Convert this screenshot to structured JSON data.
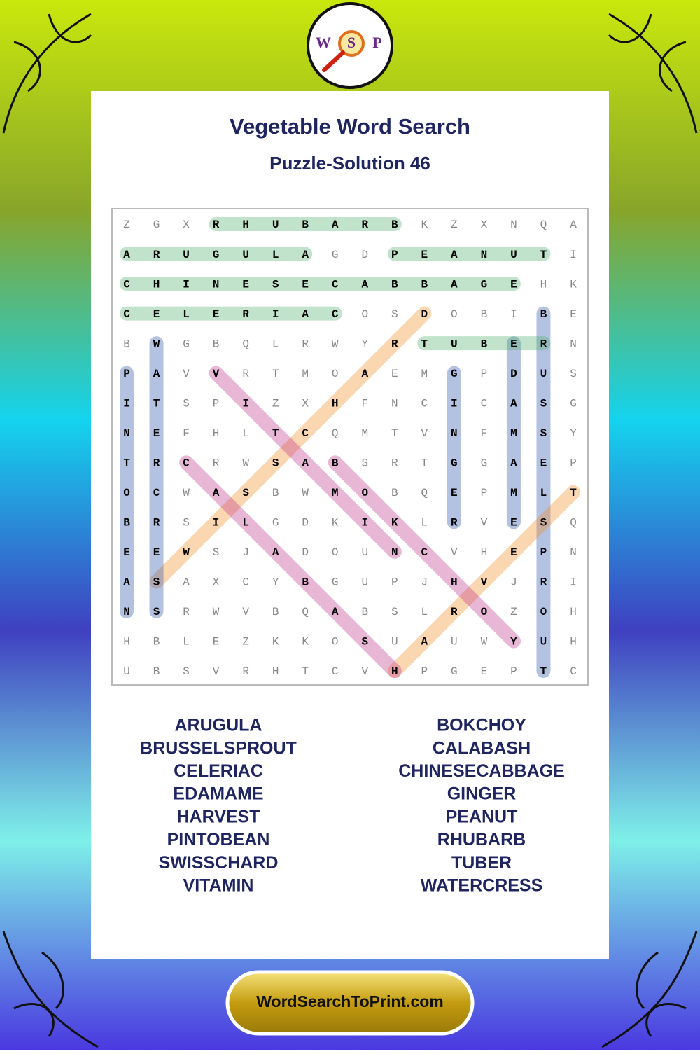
{
  "logo": [
    "W",
    "S",
    "P"
  ],
  "title": "Vegetable Word Search",
  "subtitle": "Puzzle-Solution 46",
  "grid": [
    [
      "Z",
      "G",
      "X",
      "R",
      "H",
      "U",
      "B",
      "A",
      "R",
      "B",
      "K",
      "Z",
      "X",
      "N",
      "Q",
      "A"
    ],
    [
      "A",
      "R",
      "U",
      "G",
      "U",
      "L",
      "A",
      "G",
      "D",
      "P",
      "E",
      "A",
      "N",
      "U",
      "T",
      "I"
    ],
    [
      "C",
      "H",
      "I",
      "N",
      "E",
      "S",
      "E",
      "C",
      "A",
      "B",
      "B",
      "A",
      "G",
      "E",
      "H",
      "K"
    ],
    [
      "C",
      "E",
      "L",
      "E",
      "R",
      "I",
      "A",
      "C",
      "O",
      "S",
      "D",
      "O",
      "B",
      "I",
      "B",
      "E"
    ],
    [
      "B",
      "W",
      "G",
      "B",
      "Q",
      "L",
      "R",
      "W",
      "Y",
      "R",
      "T",
      "U",
      "B",
      "E",
      "R",
      "N"
    ],
    [
      "P",
      "A",
      "V",
      "V",
      "R",
      "T",
      "M",
      "O",
      "A",
      "E",
      "M",
      "G",
      "P",
      "D",
      "U",
      "S"
    ],
    [
      "I",
      "T",
      "S",
      "P",
      "I",
      "Z",
      "X",
      "H",
      "F",
      "N",
      "C",
      "I",
      "C",
      "A",
      "S",
      "G"
    ],
    [
      "N",
      "E",
      "F",
      "H",
      "L",
      "T",
      "C",
      "Q",
      "M",
      "T",
      "V",
      "N",
      "F",
      "M",
      "S",
      "Y"
    ],
    [
      "T",
      "R",
      "C",
      "R",
      "W",
      "S",
      "A",
      "B",
      "S",
      "R",
      "T",
      "G",
      "G",
      "A",
      "E",
      "P"
    ],
    [
      "O",
      "C",
      "W",
      "A",
      "S",
      "B",
      "W",
      "M",
      "O",
      "B",
      "Q",
      "E",
      "P",
      "M",
      "L",
      "T"
    ],
    [
      "B",
      "R",
      "S",
      "I",
      "L",
      "G",
      "D",
      "K",
      "I",
      "K",
      "L",
      "R",
      "V",
      "E",
      "S",
      "Q"
    ],
    [
      "E",
      "E",
      "W",
      "S",
      "J",
      "A",
      "D",
      "O",
      "U",
      "N",
      "C",
      "V",
      "H",
      "E",
      "P",
      "N"
    ],
    [
      "A",
      "S",
      "A",
      "X",
      "C",
      "Y",
      "B",
      "G",
      "U",
      "P",
      "J",
      "H",
      "V",
      "J",
      "R",
      "I"
    ],
    [
      "N",
      "S",
      "R",
      "W",
      "V",
      "B",
      "Q",
      "A",
      "B",
      "S",
      "L",
      "R",
      "O",
      "Z",
      "O",
      "H"
    ],
    [
      "H",
      "B",
      "L",
      "E",
      "Z",
      "K",
      "K",
      "O",
      "S",
      "U",
      "A",
      "U",
      "W",
      "Y",
      "U",
      "H"
    ],
    [
      "U",
      "B",
      "S",
      "V",
      "R",
      "H",
      "T",
      "C",
      "V",
      "H",
      "P",
      "G",
      "E",
      "P",
      "T",
      "C"
    ]
  ],
  "word_list": {
    "left": [
      "ARUGULA",
      "BRUSSELSPROUT",
      "CELERIAC",
      "EDAMAME",
      "HARVEST",
      "PINTOBEAN",
      "SWISSCHARD",
      "VITAMIN"
    ],
    "right": [
      "BOKCHOY",
      "CALABASH",
      "CHINESECABBAGE",
      "GINGER",
      "PEANUT",
      "RHUBARB",
      "TUBER",
      "WATERCRESS"
    ]
  },
  "footer": "WordSearchToPrint.com"
}
